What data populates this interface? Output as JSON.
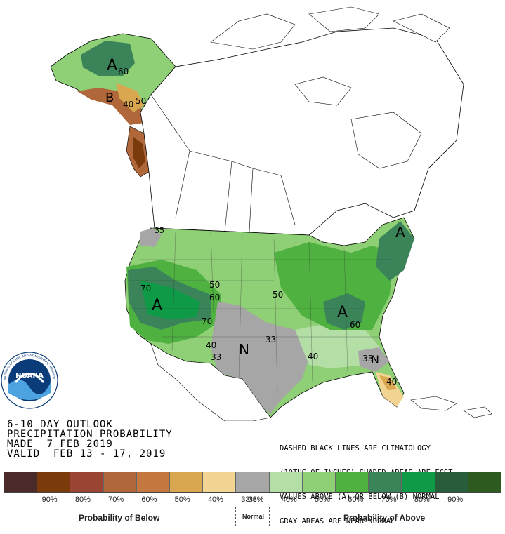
{
  "title_lines": [
    "6-10 DAY OUTLOOK",
    "PRECIPITATION PROBABILITY",
    "MADE  7 FEB 2019",
    "VALID  FEB 13 - 17, 2019"
  ],
  "notes_lines": [
    "DASHED BLACK LINES ARE CLIMATOLOGY",
    "(10THS OF INCHES) SHADED AREAS ARE FCST",
    "VALUES ABOVE (A) OR BELOW (B) NORMAL",
    "GRAY AREAS ARE NEAR-NORMAL"
  ],
  "logo": {
    "text": "NOARA",
    "ring_text": "NATIONAL OCEANIC AND ATMOSPHERIC ADMINISTRATION · U.S. DEPARTMENT OF COMMERCE"
  },
  "legend": {
    "labels": [
      "90%",
      "80%",
      "70%",
      "60%",
      "50%",
      "40%",
      "33%",
      "33%",
      "40%",
      "50%",
      "60%",
      "70%",
      "80%",
      "90%"
    ],
    "below_caption": "Probability of Below",
    "normal_caption": "Normal",
    "above_caption": "Probability of Above",
    "colors": [
      "#4a2a2a",
      "#7b3a0a",
      "#9a4534",
      "#b0673a",
      "#c4773e",
      "#d9a750",
      "#f2d493",
      "#a6a6a6",
      "#b3dea6",
      "#8fcf75",
      "#4fb140",
      "#3b845a",
      "#0e9a46",
      "#275d3b",
      "#2d5a1e"
    ]
  },
  "map_labels": {
    "alaska_a": "A",
    "alaska_60": "60",
    "alaska_50": "50",
    "alaska_40": "40",
    "alaska_b": "B",
    "nw_35": "35",
    "west_a": "A",
    "west_70": "70",
    "west_70b": "70",
    "west_60": "60",
    "west_50": "50",
    "sw_40": "40",
    "sw_33": "33",
    "sw_n": "N",
    "sw_33b": "33",
    "central_50": "50",
    "east_a": "A",
    "east_60": "60",
    "ne_a": "A",
    "south_40": "40",
    "se_33": "33",
    "se_n": "N",
    "fl_40": "40"
  }
}
